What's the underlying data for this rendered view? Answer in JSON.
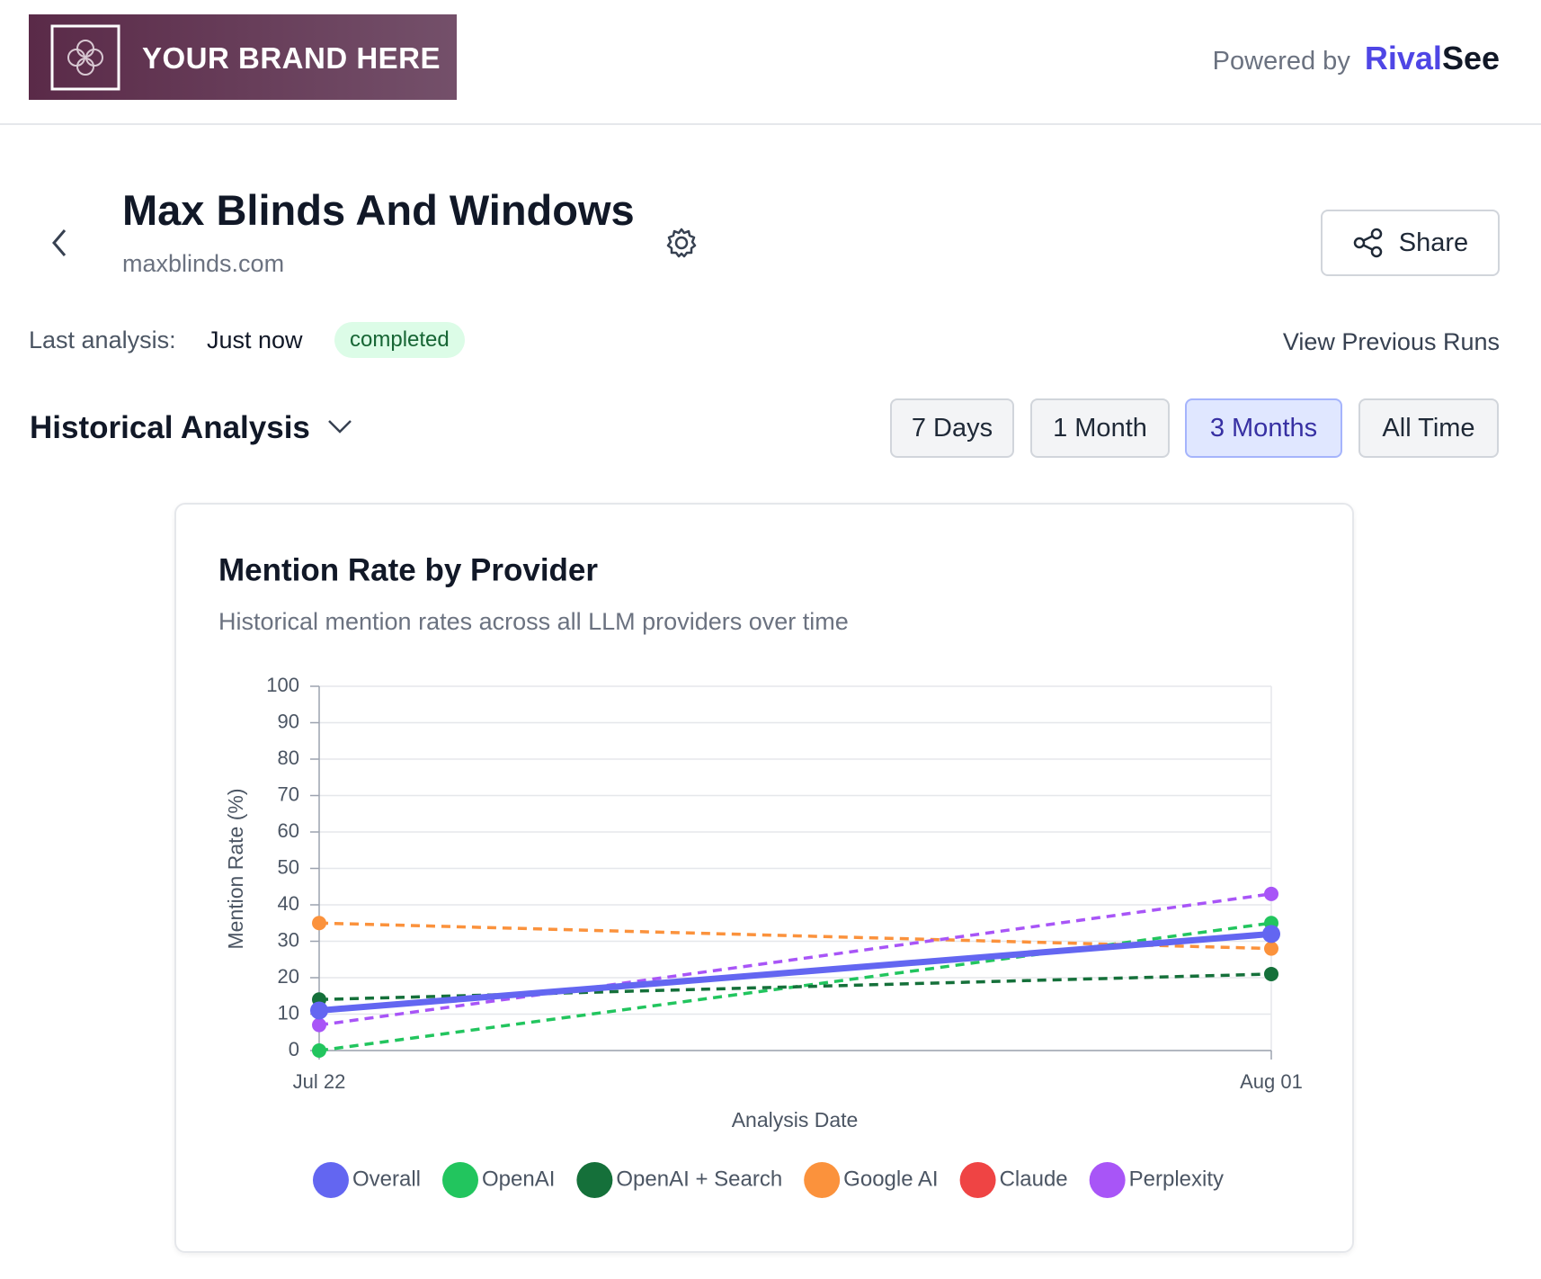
{
  "header": {
    "brand": "YOUR BRAND HERE",
    "powered_by": "Powered by",
    "logo_rival": "Rival",
    "logo_see": "See"
  },
  "page": {
    "title": "Max Blinds And Windows",
    "domain": "maxblinds.com",
    "share": "Share",
    "last_analysis_label": "Last analysis:",
    "last_analysis_value": "Just now",
    "status": "completed",
    "view_previous_runs": "View Previous Runs",
    "section_title": "Historical Analysis",
    "ranges": [
      "7 Days",
      "1 Month",
      "3 Months",
      "All Time"
    ],
    "active_range": 2
  },
  "chart_data": {
    "type": "line",
    "title": "Mention Rate by Provider",
    "subtitle": "Historical mention rates across all LLM providers over time",
    "x_label": "Analysis Date",
    "y_label": "Mention Rate (%)",
    "categories": [
      "Jul 22",
      "Aug 01"
    ],
    "ylim": [
      0,
      100
    ],
    "yticks": [
      0,
      10,
      20,
      30,
      40,
      50,
      60,
      70,
      80,
      90,
      100
    ],
    "grid": true,
    "series": [
      {
        "name": "Overall",
        "color": "#6366f1",
        "line_style": "solid",
        "values": [
          11,
          32
        ]
      },
      {
        "name": "OpenAI",
        "color": "#22c55e",
        "line_style": "dashed",
        "values": [
          0,
          35
        ]
      },
      {
        "name": "OpenAI + Search",
        "color": "#15703a",
        "line_style": "dashed",
        "values": [
          14,
          21
        ]
      },
      {
        "name": "Google AI",
        "color": "#fb923c",
        "line_style": "dashed",
        "values": [
          35,
          28
        ]
      },
      {
        "name": "Claude",
        "color": "#ef4444",
        "line_style": "dashed",
        "values": [
          null,
          null
        ]
      },
      {
        "name": "Perplexity",
        "color": "#a855f7",
        "line_style": "dashed",
        "values": [
          7,
          43
        ]
      }
    ]
  }
}
